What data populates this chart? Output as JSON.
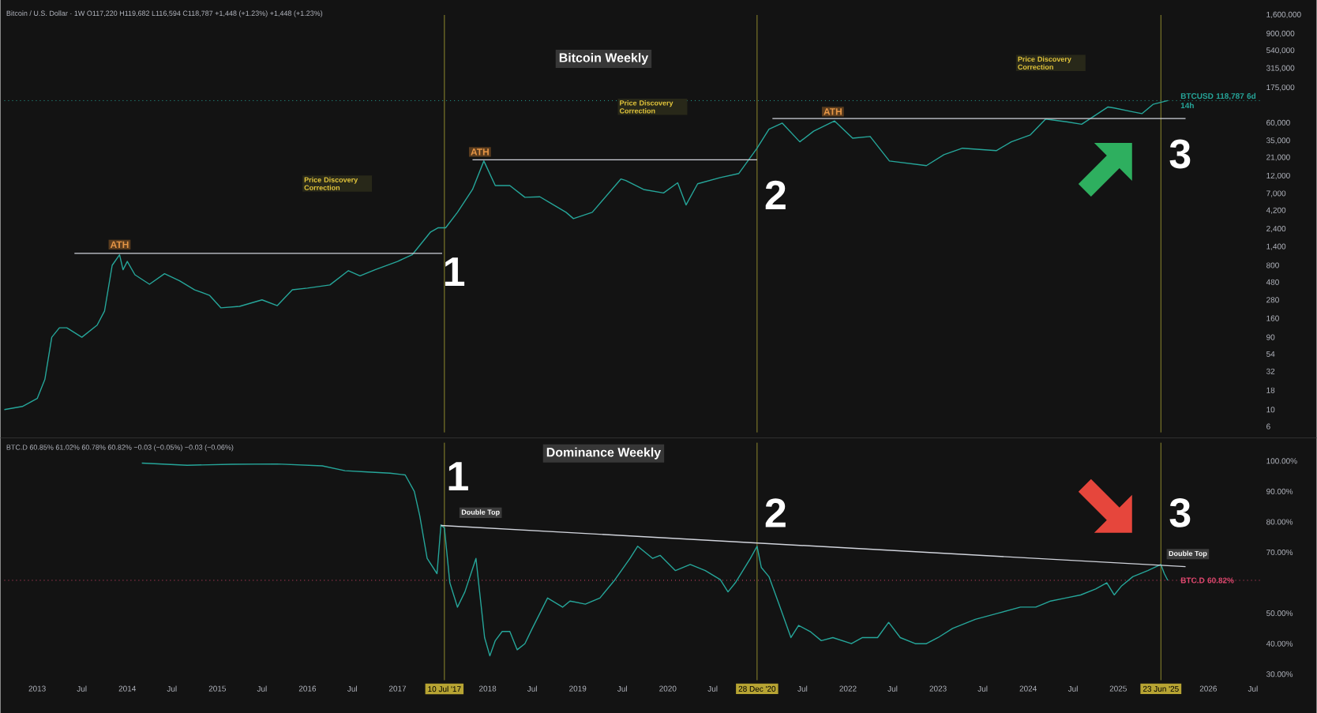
{
  "chart_data": [
    {
      "type": "line",
      "title": "Bitcoin Weekly",
      "subtitle": "Bitcoin / U.S. Dollar · 1W  O117,220  H119,682  L116,594  C118,787  +1,448 (+1.23%)  +1,448 (+1.23%)",
      "log": true,
      "tick_labels": "y",
      "xlim": [
        "2012-08-20",
        "2026-08-01"
      ],
      "ylim": [
        5,
        1600000
      ],
      "yticks": [
        {
          "value": 6,
          "label": "6"
        },
        {
          "value": 10,
          "label": "10"
        },
        {
          "value": 18,
          "label": "18"
        },
        {
          "value": 32,
          "label": "32"
        },
        {
          "value": 54,
          "label": "54"
        },
        {
          "value": 90,
          "label": "90"
        },
        {
          "value": 160,
          "label": "160"
        },
        {
          "value": 280,
          "label": "280"
        },
        {
          "value": 480,
          "label": "480"
        },
        {
          "value": 800,
          "label": "800"
        },
        {
          "value": 1400,
          "label": "1,400"
        },
        {
          "value": 2400,
          "label": "2,400"
        },
        {
          "value": 4200,
          "label": "4,200"
        },
        {
          "value": 7000,
          "label": "7,000"
        },
        {
          "value": 12000,
          "label": "12,000"
        },
        {
          "value": 21000,
          "label": "21,000"
        },
        {
          "value": 35000,
          "label": "35,000"
        },
        {
          "value": 60000,
          "label": "60,000"
        },
        {
          "value": 175000,
          "label": "175,000"
        },
        {
          "value": 315000,
          "label": "315,000"
        },
        {
          "value": 540000,
          "label": "540,000"
        },
        {
          "value": 900000,
          "label": "900,000"
        },
        {
          "value": 1600000,
          "label": "1,600,000"
        }
      ],
      "series": [
        {
          "color": "#26a69a",
          "x": [
            "2012-08-20",
            "2012-11-01",
            "2013-01-01",
            "2013-02-01",
            "2013-03-01",
            "2013-04-01",
            "2013-05-01",
            "2013-07-01",
            "2013-09-01",
            "2013-10-01",
            "2013-11-01",
            "2013-12-01",
            "2013-12-15",
            "2014-01-01",
            "2014-02-01",
            "2014-04-01",
            "2014-06-01",
            "2014-08-01",
            "2014-10-01",
            "2014-12-01",
            "2015-01-15",
            "2015-04-01",
            "2015-07-01",
            "2015-09-01",
            "2015-11-01",
            "2016-01-01",
            "2016-04-01",
            "2016-06-15",
            "2016-08-01",
            "2016-10-01",
            "2017-01-01",
            "2017-03-01",
            "2017-05-15",
            "2017-06-15",
            "2017-07-15",
            "2017-09-01",
            "2017-11-01",
            "2017-12-17",
            "2018-02-01",
            "2018-04-01",
            "2018-06-01",
            "2018-08-01",
            "2018-11-15",
            "2018-12-15",
            "2019-03-01",
            "2019-06-25",
            "2019-07-15",
            "2019-09-25",
            "2019-12-15",
            "2020-02-10",
            "2020-03-15",
            "2020-05-01",
            "2020-08-01",
            "2020-10-15",
            "2020-12-28",
            "2021-02-15",
            "2021-04-10",
            "2021-06-20",
            "2021-08-15",
            "2021-11-08",
            "2022-01-20",
            "2022-04-01",
            "2022-06-18",
            "2022-11-15",
            "2023-01-25",
            "2023-04-10",
            "2023-08-25",
            "2023-10-25",
            "2024-01-10",
            "2024-03-12",
            "2024-06-10",
            "2024-08-05",
            "2024-11-20",
            "2024-12-15",
            "2025-02-25",
            "2025-04-07",
            "2025-05-22",
            "2025-07-21"
          ],
          "values": [
            10,
            11,
            14,
            25,
            90,
            120,
            120,
            90,
            130,
            200,
            800,
            1100,
            700,
            900,
            600,
            450,
            620,
            500,
            380,
            320,
            220,
            230,
            280,
            235,
            380,
            400,
            440,
            680,
            580,
            700,
            900,
            1100,
            2200,
            2500,
            2500,
            4000,
            8000,
            19000,
            9000,
            9000,
            6300,
            6400,
            4000,
            3300,
            4000,
            11000,
            10500,
            8000,
            7200,
            9800,
            5000,
            9500,
            11500,
            13000,
            28000,
            50000,
            60000,
            34000,
            47000,
            64000,
            38000,
            40000,
            19000,
            16500,
            23000,
            28000,
            26000,
            34000,
            42000,
            68000,
            62000,
            58000,
            98000,
            95000,
            85000,
            80000,
            106000,
            118787
          ]
        },
        {
          "type": "line",
          "color": "#d1d4dc",
          "x": [
            "2013-06-01",
            "2017-07-01"
          ],
          "values": [
            1150,
            1150
          ]
        },
        {
          "type": "line",
          "color": "#d1d4dc",
          "x": [
            "2017-11-01",
            "2020-12-28"
          ],
          "values": [
            19700,
            19700
          ]
        },
        {
          "type": "line",
          "color": "#d1d4dc",
          "x": [
            "2021-03-01",
            "2025-10-01"
          ],
          "values": [
            69000,
            69000
          ]
        }
      ],
      "ref_lines": [
        {
          "axis": "x",
          "value": "2017-07-10",
          "color": "#8f8a2e"
        },
        {
          "axis": "x",
          "value": "2020-12-28",
          "color": "#8f8a2e"
        },
        {
          "axis": "x",
          "value": "2025-06-23",
          "color": "#8f8a2e"
        },
        {
          "axis": "y",
          "value": 118787,
          "label": "BTCUSD 118,787 6d 14h",
          "color": "#26a69a",
          "line_style": "dotted"
        }
      ],
      "annotations": [
        {
          "text": "ATH",
          "x": "2013-12-01",
          "y": 1500
        },
        {
          "text": "ATH",
          "x": "2017-12-01",
          "y": 25000
        },
        {
          "text": "ATH",
          "x": "2021-11-01",
          "y": 85000
        },
        "Price Discovery Correction",
        "Price Discovery Correction",
        "Price Discovery Correction",
        "1",
        "2",
        "3"
      ]
    },
    {
      "type": "line",
      "title": "Dominance Weekly",
      "subtitle": "BTC.D  60.85%  61.02%  60.78%  60.82%  −0.03 (−0.05%)  −0.03 (−0.06%)",
      "xlim": [
        "2012-08-20",
        "2026-08-01"
      ],
      "ylim": [
        28,
        106
      ],
      "xticks": [
        {
          "value": "2013-01-01",
          "label": "2013"
        },
        {
          "value": "2013-07-01",
          "label": "Jul"
        },
        {
          "value": "2014-01-01",
          "label": "2014"
        },
        {
          "value": "2014-07-01",
          "label": "Jul"
        },
        {
          "value": "2015-01-01",
          "label": "2015"
        },
        {
          "value": "2015-07-01",
          "label": "Jul"
        },
        {
          "value": "2016-01-01",
          "label": "2016"
        },
        {
          "value": "2016-07-01",
          "label": "Jul"
        },
        {
          "value": "2017-01-01",
          "label": "2017"
        },
        {
          "value": "2018-01-01",
          "label": "2018"
        },
        {
          "value": "2018-07-01",
          "label": "Jul"
        },
        {
          "value": "2019-01-01",
          "label": "2019"
        },
        {
          "value": "2019-07-01",
          "label": "Jul"
        },
        {
          "value": "2020-01-01",
          "label": "2020"
        },
        {
          "value": "2020-07-01",
          "label": "Jul"
        },
        {
          "value": "2021-07-01",
          "label": "Jul"
        },
        {
          "value": "2022-01-01",
          "label": "2022"
        },
        {
          "value": "2022-07-01",
          "label": "Jul"
        },
        {
          "value": "2023-01-01",
          "label": "2023"
        },
        {
          "value": "2023-07-01",
          "label": "Jul"
        },
        {
          "value": "2024-01-01",
          "label": "2024"
        },
        {
          "value": "2024-07-01",
          "label": "Jul"
        },
        {
          "value": "2025-01-01",
          "label": "2025"
        },
        {
          "value": "2026-01-01",
          "label": "2026"
        },
        {
          "value": "2026-07-01",
          "label": "Jul"
        }
      ],
      "yticks": [
        {
          "value": 30,
          "label": "30.00%"
        },
        {
          "value": 40,
          "label": "40.00%"
        },
        {
          "value": 50,
          "label": "50.00%"
        },
        {
          "value": 70,
          "label": "70.00%"
        },
        {
          "value": 80,
          "label": "80.00%"
        },
        {
          "value": 90,
          "label": "90.00%"
        },
        {
          "value": 100,
          "label": "100.00%"
        }
      ],
      "series": [
        {
          "color": "#26a69a",
          "x": [
            "2014-03-01",
            "2014-09-01",
            "2015-03-01",
            "2015-09-01",
            "2016-03-01",
            "2016-06-01",
            "2016-09-01",
            "2016-12-01",
            "2017-02-01",
            "2017-03-10",
            "2017-04-01",
            "2017-05-01",
            "2017-06-10",
            "2017-06-26",
            "2017-07-10",
            "2017-08-01",
            "2017-09-01",
            "2017-10-01",
            "2017-11-15",
            "2017-12-20",
            "2018-01-10",
            "2018-02-01",
            "2018-03-01",
            "2018-04-01",
            "2018-05-01",
            "2018-06-01",
            "2018-07-01",
            "2018-08-01",
            "2018-09-01",
            "2018-11-01",
            "2018-12-01",
            "2019-02-01",
            "2019-04-01",
            "2019-06-01",
            "2019-08-01",
            "2019-09-01",
            "2019-11-01",
            "2019-12-01",
            "2020-02-01",
            "2020-04-01",
            "2020-06-01",
            "2020-08-01",
            "2020-09-01",
            "2020-10-01",
            "2020-12-01",
            "2020-12-28",
            "2021-01-15",
            "2021-02-15",
            "2021-04-01",
            "2021-05-15",
            "2021-06-15",
            "2021-08-01",
            "2021-09-15",
            "2021-11-01",
            "2022-01-15",
            "2022-03-01",
            "2022-05-01",
            "2022-06-15",
            "2022-08-01",
            "2022-10-01",
            "2022-11-15",
            "2023-01-01",
            "2023-03-01",
            "2023-06-01",
            "2023-09-01",
            "2023-12-01",
            "2024-02-01",
            "2024-04-01",
            "2024-06-01",
            "2024-08-01",
            "2024-10-01",
            "2024-11-15",
            "2024-12-15",
            "2025-01-15",
            "2025-03-01",
            "2025-05-01",
            "2025-06-23",
            "2025-07-07",
            "2025-07-21"
          ],
          "values": [
            99.3,
            98.6,
            98.9,
            99.0,
            98.4,
            96.8,
            96.4,
            96.0,
            95.4,
            90,
            82,
            68,
            63,
            79,
            78,
            60,
            52,
            57,
            68,
            42,
            36,
            41,
            44,
            44,
            38,
            40,
            45,
            50,
            55,
            52,
            54,
            53,
            55,
            61,
            68,
            72,
            68,
            69,
            64,
            66,
            64,
            61,
            57,
            60,
            68,
            72,
            65,
            62,
            52,
            42,
            46,
            44,
            41,
            42,
            40,
            42,
            42,
            47,
            42,
            40,
            40,
            42,
            45,
            48,
            50,
            52,
            52,
            54,
            55,
            56,
            58,
            60,
            56,
            59,
            62,
            64,
            66,
            63,
            60.8
          ]
        },
        {
          "type": "line",
          "color": "#d1d4dc",
          "x": [
            "2017-06-26",
            "2025-10-01"
          ],
          "values": [
            78.8,
            65.3
          ]
        }
      ],
      "ref_lines": [
        {
          "axis": "x",
          "value": "2017-07-10",
          "label": "10 Jul '17",
          "color": "#8f8a2e"
        },
        {
          "axis": "x",
          "value": "2020-12-28",
          "label": "28 Dec '20",
          "color": "#8f8a2e"
        },
        {
          "axis": "x",
          "value": "2025-06-23",
          "label": "23 Jun '25",
          "color": "#8f8a2e"
        },
        {
          "axis": "y",
          "value": 60.8,
          "label": "BTC.D 60.82%",
          "color": "#e0486f",
          "line_style": "dotted"
        }
      ],
      "annotations": [
        "1",
        "2",
        "3",
        "Double Top",
        "Double Top"
      ]
    }
  ]
}
